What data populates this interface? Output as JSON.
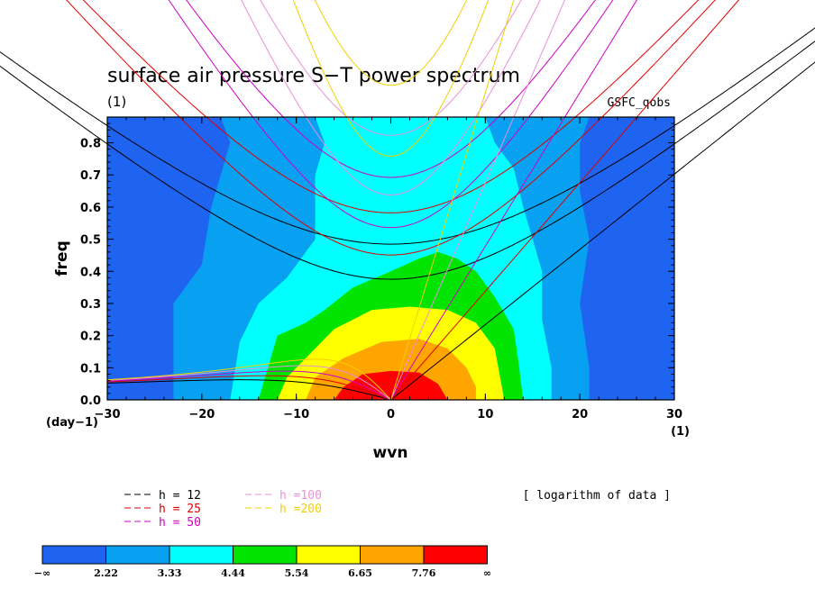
{
  "chart_data": {
    "type": "heatmap",
    "title": "surface air pressure S−T power spectrum",
    "subtitle": "(1)",
    "model": "GSFC_qobs",
    "xlabel": "wvn",
    "ylabel": "freq",
    "x_unit": "(1)",
    "y_unit": "(day−1)",
    "xlim": [
      -30,
      30
    ],
    "ylim": [
      0,
      0.88
    ],
    "xticks": [
      -30,
      -20,
      -10,
      0,
      10,
      20,
      30
    ],
    "xtick_labels": [
      "−30",
      "−20",
      "−10",
      "0",
      "10",
      "20",
      "30"
    ],
    "yticks": [
      0.0,
      0.1,
      0.2,
      0.3,
      0.4,
      0.5,
      0.6,
      0.7,
      0.8
    ],
    "ytick_labels": [
      "0.0",
      "0.1",
      "0.2",
      "0.3",
      "0.4",
      "0.5",
      "0.6",
      "0.7",
      "0.8"
    ],
    "note": "[ logarithm of data ]",
    "levels": [
      "−∞",
      "2.22",
      "3.33",
      "4.44",
      "5.54",
      "6.65",
      "7.76",
      "∞"
    ],
    "level_colors": [
      "#1e64f0",
      "#08a0f0",
      "#00ffff",
      "#00e400",
      "#ffff00",
      "#ffa500",
      "#ff0000"
    ],
    "filled_regions": [
      {
        "level": 1,
        "points": [
          [
            -23,
            0
          ],
          [
            -23,
            0.3
          ],
          [
            -20,
            0.42
          ],
          [
            -19,
            0.6
          ],
          [
            -18,
            0.7
          ],
          [
            -17,
            0.8
          ],
          [
            -18,
            0.88
          ],
          [
            21,
            0.88
          ],
          [
            20,
            0.8
          ],
          [
            20,
            0.65
          ],
          [
            21,
            0.5
          ],
          [
            20,
            0.3
          ],
          [
            21,
            0.1
          ],
          [
            21,
            0
          ]
        ]
      },
      {
        "level": 2,
        "points": [
          [
            -17,
            0
          ],
          [
            -16,
            0.18
          ],
          [
            -14,
            0.3
          ],
          [
            -11,
            0.38
          ],
          [
            -8,
            0.5
          ],
          [
            -8,
            0.7
          ],
          [
            -7,
            0.8
          ],
          [
            -8,
            0.88
          ],
          [
            10,
            0.88
          ],
          [
            11,
            0.8
          ],
          [
            13,
            0.72
          ],
          [
            14,
            0.6
          ],
          [
            15,
            0.5
          ],
          [
            16,
            0.4
          ],
          [
            16,
            0.25
          ],
          [
            17,
            0.1
          ],
          [
            17,
            0
          ]
        ]
      },
      {
        "level": 3,
        "points": [
          [
            -14,
            0
          ],
          [
            -13,
            0.1
          ],
          [
            -12,
            0.2
          ],
          [
            -9,
            0.24
          ],
          [
            -7,
            0.28
          ],
          [
            -4,
            0.35
          ],
          [
            0,
            0.4
          ],
          [
            3,
            0.44
          ],
          [
            5,
            0.46
          ],
          [
            7,
            0.44
          ],
          [
            9,
            0.4
          ],
          [
            11,
            0.32
          ],
          [
            13,
            0.22
          ],
          [
            13.5,
            0.12
          ],
          [
            14,
            0
          ]
        ]
      },
      {
        "level": 4,
        "points": [
          [
            -12,
            0
          ],
          [
            -11,
            0.07
          ],
          [
            -9,
            0.13
          ],
          [
            -6,
            0.22
          ],
          [
            -2,
            0.28
          ],
          [
            2,
            0.29
          ],
          [
            6,
            0.28
          ],
          [
            9,
            0.24
          ],
          [
            11,
            0.16
          ],
          [
            11.5,
            0.08
          ],
          [
            12,
            0
          ]
        ]
      },
      {
        "level": 5,
        "points": [
          [
            -9,
            0
          ],
          [
            -8,
            0.07
          ],
          [
            -5,
            0.13
          ],
          [
            -1,
            0.18
          ],
          [
            3,
            0.19
          ],
          [
            6,
            0.16
          ],
          [
            8,
            0.1
          ],
          [
            9,
            0.04
          ],
          [
            9,
            0
          ]
        ]
      },
      {
        "level": 6,
        "points": [
          [
            -6,
            0
          ],
          [
            -5,
            0.04
          ],
          [
            -3,
            0.08
          ],
          [
            0,
            0.09
          ],
          [
            3,
            0.085
          ],
          [
            5,
            0.05
          ],
          [
            6,
            0
          ]
        ]
      }
    ],
    "dispersion_curves": [
      {
        "name": "h = 12",
        "equivalent_depth": 12,
        "color": "#000000"
      },
      {
        "name": "h = 25",
        "equivalent_depth": 25,
        "color": "#e00000"
      },
      {
        "name": "h = 50",
        "equivalent_depth": 50,
        "color": "#d000c8"
      },
      {
        "name": "h =100",
        "equivalent_depth": 100,
        "color": "#e890d8"
      },
      {
        "name": "h =200",
        "equivalent_depth": 200,
        "color": "#f0d000"
      }
    ]
  }
}
